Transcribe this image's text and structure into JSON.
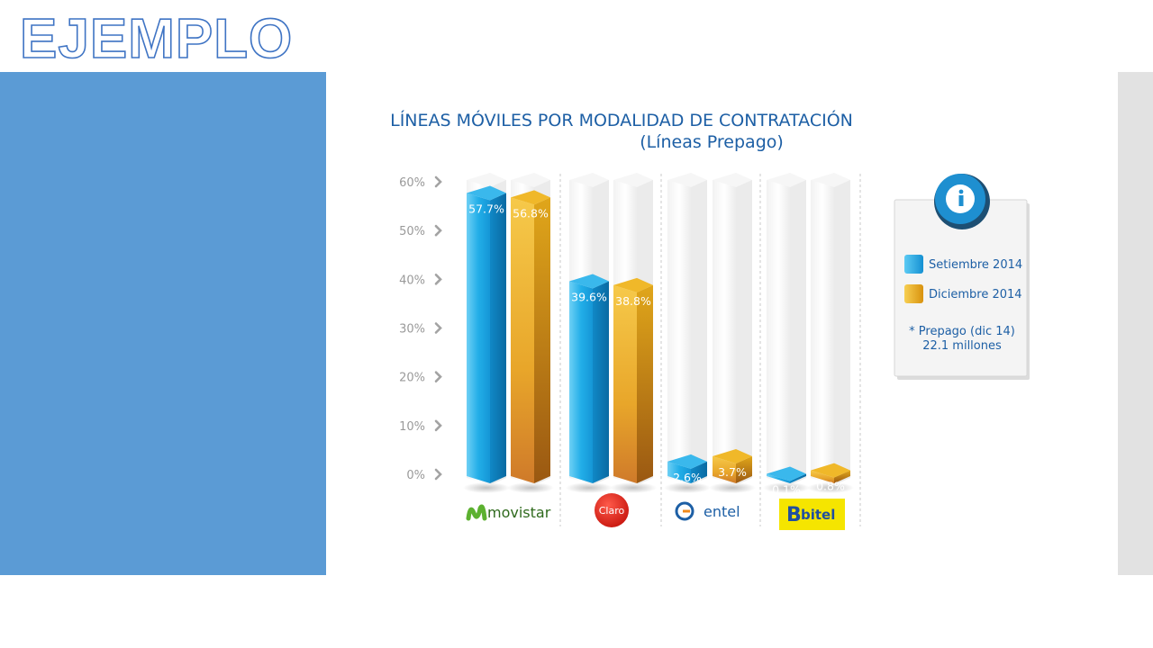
{
  "slide": {
    "title": "EJEMPLO"
  },
  "colors": {
    "panel": "#5b9bd5",
    "series1": "#1ea5e3",
    "series2": "#f0b61d",
    "title": "#1d5fa5"
  },
  "chart_data": {
    "type": "bar",
    "title": "LÍNEAS MÓVILES POR MODALIDAD DE CONTRATACIÓN",
    "subtitle": "(Líneas Prepago)",
    "categories": [
      "movistar",
      "Claro",
      "entel",
      "bitel"
    ],
    "series": [
      {
        "name": "Setiembre 2014",
        "values": [
          57.7,
          39.6,
          2.6,
          0.1
        ],
        "labels": [
          "57.7%",
          "39.6%",
          "2.6%",
          "0.1%"
        ]
      },
      {
        "name": "Diciembre 2014",
        "values": [
          56.8,
          38.8,
          3.7,
          0.8
        ],
        "labels": [
          "56.8%",
          "38.8%",
          "3.7%",
          "0.8%"
        ]
      }
    ],
    "yticks": [
      "0%",
      "10%",
      "20%",
      "30%",
      "40%",
      "50%",
      "60%"
    ],
    "ylim": [
      0,
      60
    ],
    "legend_position": "right",
    "note": [
      "* Prepago (dic 14)",
      "22.1 millones"
    ]
  }
}
